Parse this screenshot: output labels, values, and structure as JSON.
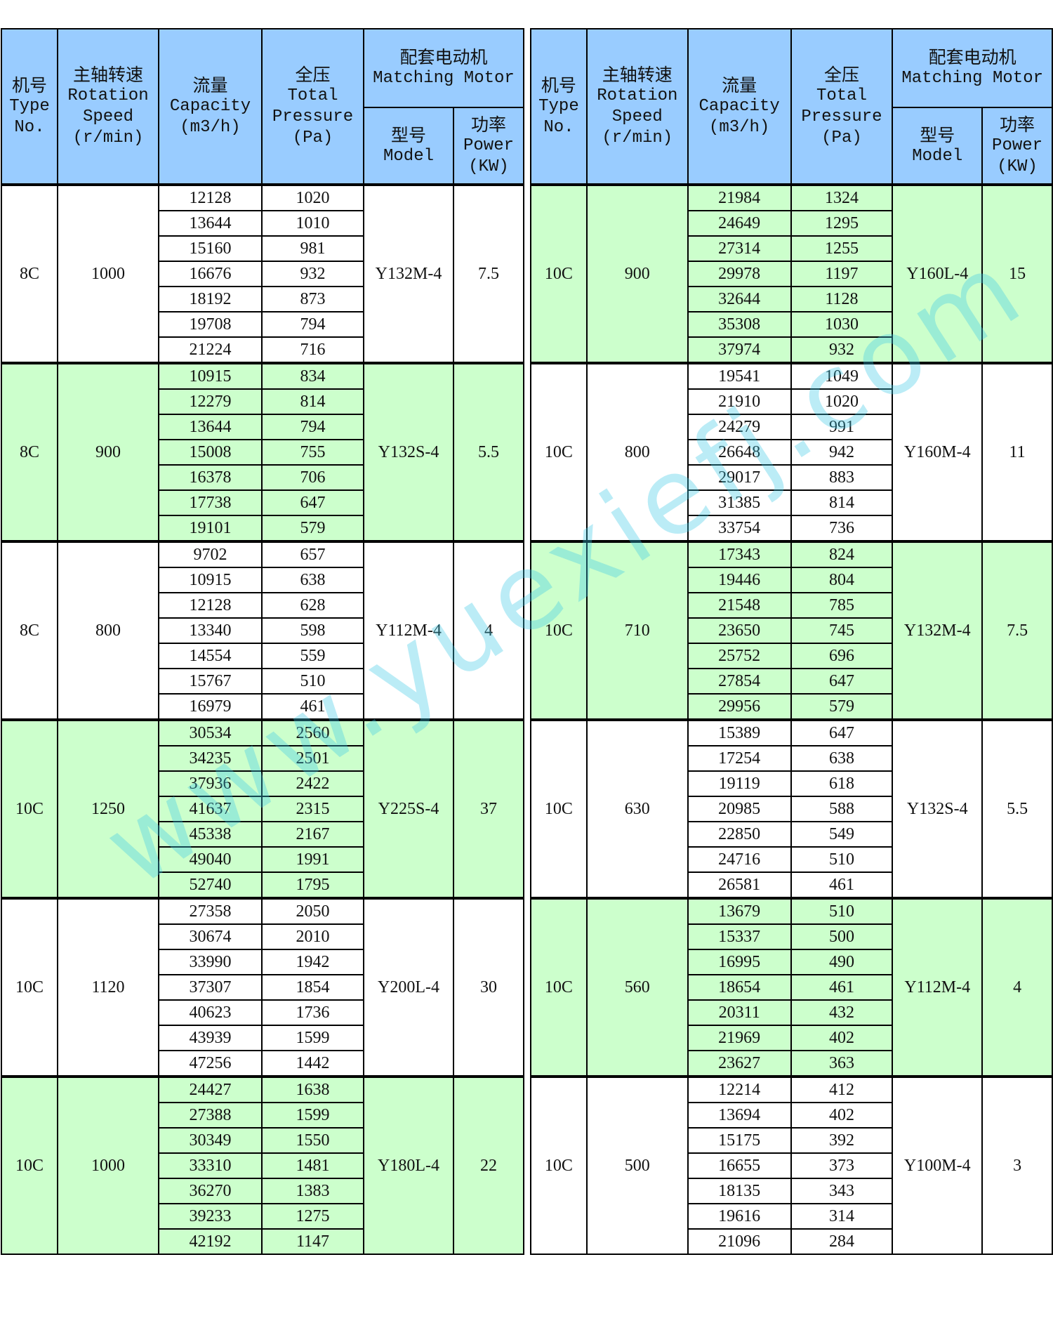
{
  "header": {
    "type_no": [
      "机号",
      "Type",
      "No."
    ],
    "speed": [
      "主轴转速",
      "Rotation",
      "Speed",
      "(r/min)"
    ],
    "capacity": [
      "流量",
      "Capacity",
      "(m3/h)"
    ],
    "pressure": [
      "全压",
      "Total",
      "Pressure",
      "(Pa)"
    ],
    "motor": [
      "配套电动机",
      "Matching Motor"
    ],
    "model": [
      "型号",
      "Model"
    ],
    "power": [
      "功率",
      "Power",
      "(KW)"
    ]
  },
  "colors": {
    "header": "#99ccff",
    "highlight": "#ccffcc",
    "plain": "#ffffff"
  },
  "watermark": "www.yuexiefj.com",
  "left_table": [
    {
      "type": "8C",
      "speed": "1000",
      "model": "Y132M-4",
      "power": "7.5",
      "highlight": false,
      "capacity": [
        "12128",
        "13644",
        "15160",
        "16676",
        "18192",
        "19708",
        "21224"
      ],
      "pressure": [
        "1020",
        "1010",
        "981",
        "932",
        "873",
        "794",
        "716"
      ]
    },
    {
      "type": "8C",
      "speed": "900",
      "model": "Y132S-4",
      "power": "5.5",
      "highlight": true,
      "capacity": [
        "10915",
        "12279",
        "13644",
        "15008",
        "16378",
        "17738",
        "19101"
      ],
      "pressure": [
        "834",
        "814",
        "794",
        "755",
        "706",
        "647",
        "579"
      ]
    },
    {
      "type": "8C",
      "speed": "800",
      "model": "Y112M-4",
      "power": "4",
      "highlight": false,
      "capacity": [
        "9702",
        "10915",
        "12128",
        "13340",
        "14554",
        "15767",
        "16979"
      ],
      "pressure": [
        "657",
        "638",
        "628",
        "598",
        "559",
        "510",
        "461"
      ]
    },
    {
      "type": "10C",
      "speed": "1250",
      "model": "Y225S-4",
      "power": "37",
      "highlight": true,
      "capacity": [
        "30534",
        "34235",
        "37936",
        "41637",
        "45338",
        "49040",
        "52740"
      ],
      "pressure": [
        "2560",
        "2501",
        "2422",
        "2315",
        "2167",
        "1991",
        "1795"
      ]
    },
    {
      "type": "10C",
      "speed": "1120",
      "model": "Y200L-4",
      "power": "30",
      "highlight": false,
      "capacity": [
        "27358",
        "30674",
        "33990",
        "37307",
        "40623",
        "43939",
        "47256"
      ],
      "pressure": [
        "2050",
        "2010",
        "1942",
        "1854",
        "1736",
        "1599",
        "1442"
      ]
    },
    {
      "type": "10C",
      "speed": "1000",
      "model": "Y180L-4",
      "power": "22",
      "highlight": true,
      "capacity": [
        "24427",
        "27388",
        "30349",
        "33310",
        "36270",
        "39233",
        "42192"
      ],
      "pressure": [
        "1638",
        "1599",
        "1550",
        "1481",
        "1383",
        "1275",
        "1147"
      ]
    }
  ],
  "right_table": [
    {
      "type": "10C",
      "speed": "900",
      "model": "Y160L-4",
      "power": "15",
      "highlight": true,
      "capacity": [
        "21984",
        "24649",
        "27314",
        "29978",
        "32644",
        "35308",
        "37974"
      ],
      "pressure": [
        "1324",
        "1295",
        "1255",
        "1197",
        "1128",
        "1030",
        "932"
      ]
    },
    {
      "type": "10C",
      "speed": "800",
      "model": "Y160M-4",
      "power": "11",
      "highlight": false,
      "capacity": [
        "19541",
        "21910",
        "24279",
        "26648",
        "29017",
        "31385",
        "33754"
      ],
      "pressure": [
        "1049",
        "1020",
        "991",
        "942",
        "883",
        "814",
        "736"
      ]
    },
    {
      "type": "10C",
      "speed": "710",
      "model": "Y132M-4",
      "power": "7.5",
      "highlight": true,
      "capacity": [
        "17343",
        "19446",
        "21548",
        "23650",
        "25752",
        "27854",
        "29956"
      ],
      "pressure": [
        "824",
        "804",
        "785",
        "745",
        "696",
        "647",
        "579"
      ]
    },
    {
      "type": "10C",
      "speed": "630",
      "model": "Y132S-4",
      "power": "5.5",
      "highlight": false,
      "capacity": [
        "15389",
        "17254",
        "19119",
        "20985",
        "22850",
        "24716",
        "26581"
      ],
      "pressure": [
        "647",
        "638",
        "618",
        "588",
        "549",
        "510",
        "461"
      ]
    },
    {
      "type": "10C",
      "speed": "560",
      "model": "Y112M-4",
      "power": "4",
      "highlight": true,
      "capacity": [
        "13679",
        "15337",
        "16995",
        "18654",
        "20311",
        "21969",
        "23627"
      ],
      "pressure": [
        "510",
        "500",
        "490",
        "461",
        "432",
        "402",
        "363"
      ]
    },
    {
      "type": "10C",
      "speed": "500",
      "model": "Y100M-4",
      "power": "3",
      "highlight": false,
      "capacity": [
        "12214",
        "13694",
        "15175",
        "16655",
        "18135",
        "19616",
        "21096"
      ],
      "pressure": [
        "412",
        "402",
        "392",
        "373",
        "343",
        "314",
        "284"
      ]
    }
  ]
}
